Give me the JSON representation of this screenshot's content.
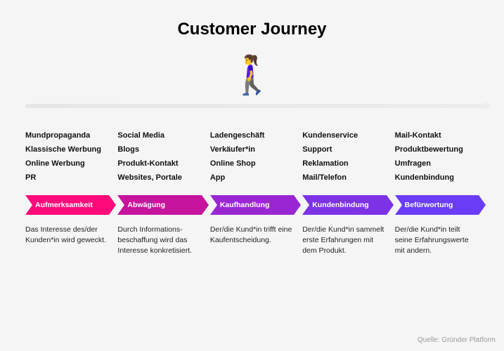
{
  "title": "Customer Journey",
  "walker_emoji": "🚶‍♀️",
  "source_label": "Quelle: Gründer Platform",
  "background_color": "#f5f5f6",
  "stages": [
    {
      "label": "Aufmerksamkeit",
      "color": "#ff0a7a",
      "touchpoints": [
        "Mundpropaganda",
        "Klassische Werbung",
        "Online Werbung",
        "PR"
      ],
      "description": "Das Interesse des/der Kunden*in wird geweckt."
    },
    {
      "label": "Abwägung",
      "color": "#c6149c",
      "touchpoints": [
        "Social Media",
        "Blogs",
        "Produkt-Kontakt",
        "Websites, Portale"
      ],
      "description": "Durch Informations­beschaffung wird das Interesse konkretisiert."
    },
    {
      "label": "Kaufhandlung",
      "color": "#9a26d3",
      "touchpoints": [
        "Ladengeschäft",
        "Verkäufer*in",
        "Online Shop",
        "App"
      ],
      "description": "Der/die Kund*in trifft eine Kaufentscheidung."
    },
    {
      "label": "Kundenbindung",
      "color": "#7d32e6",
      "touchpoints": [
        "Kundenservice",
        "Support",
        "Reklamation",
        "Mail/Telefon"
      ],
      "description": "Der/die Kund*in sammelt erste Erfahrungen mit dem Produkt."
    },
    {
      "label": "Befürwortung",
      "color": "#6a3cf5",
      "touchpoints": [
        "Mail-Kontakt",
        "Produktbewertung",
        "Umfragen",
        "Kundenbindung"
      ],
      "description": "Der/die Kund*in teilt seine Erfahrungswerte mit andern."
    }
  ]
}
